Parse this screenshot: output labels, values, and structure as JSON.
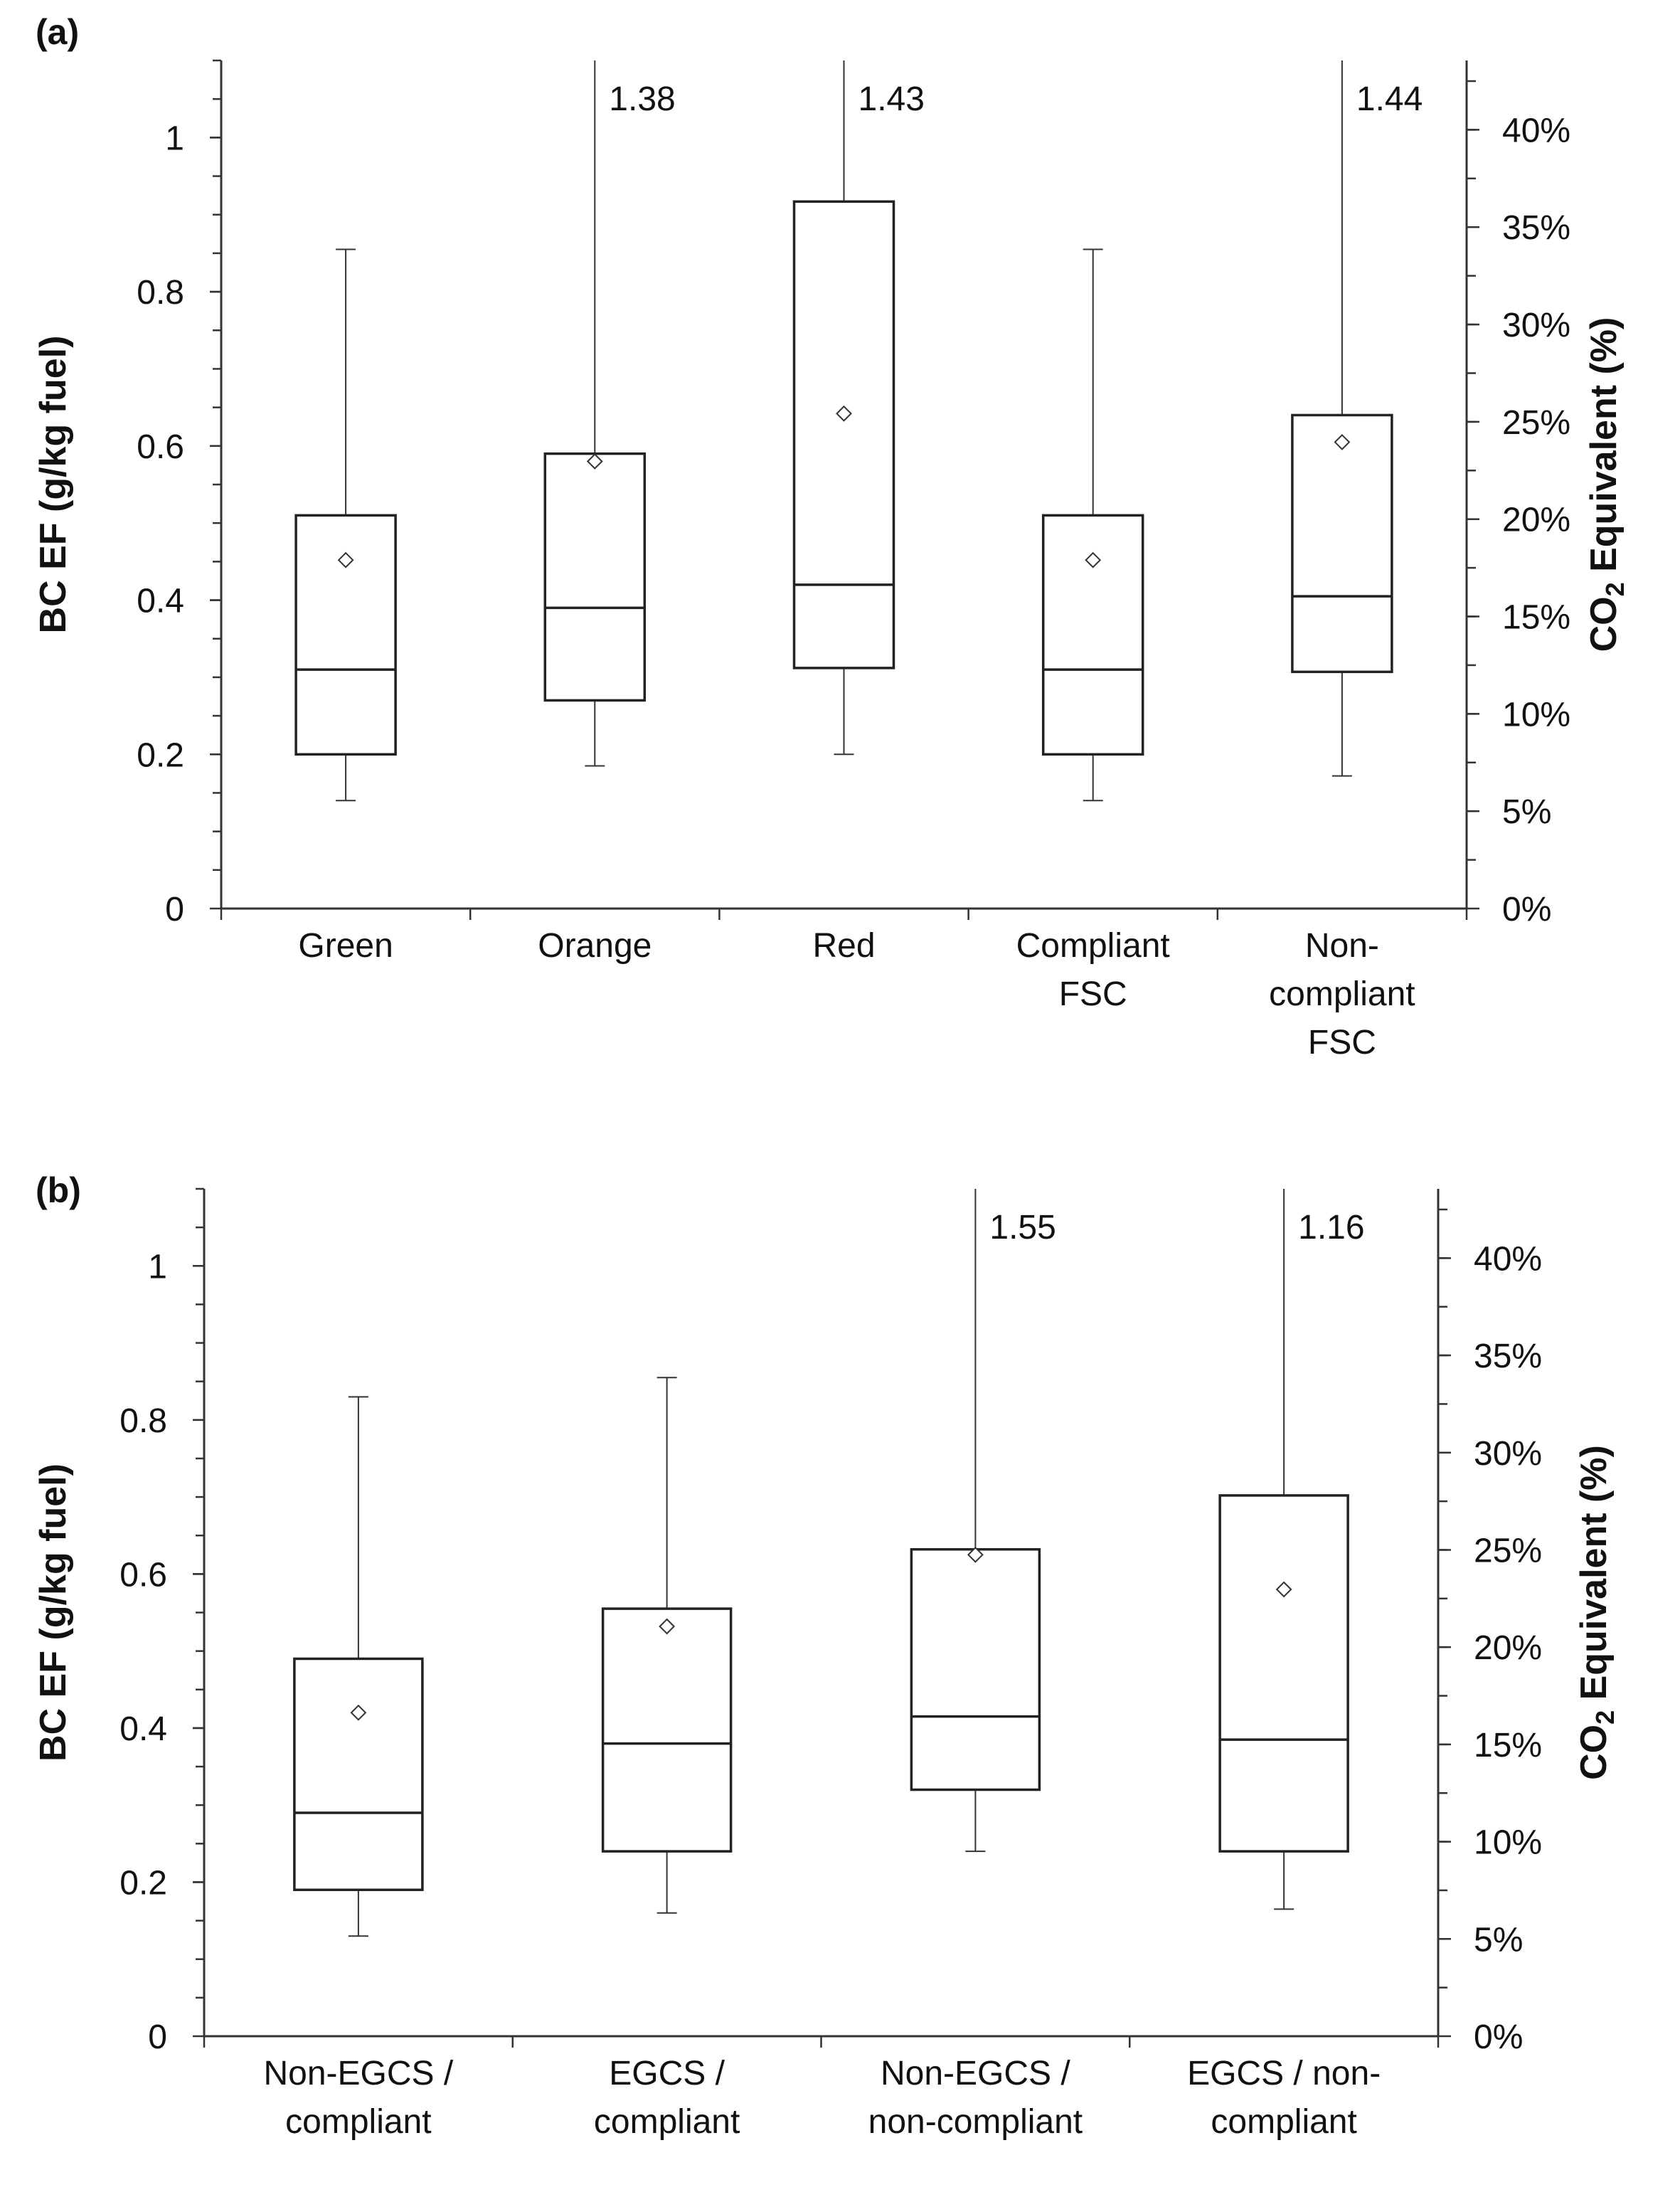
{
  "colors": {
    "ink": "#111111",
    "background": "#ffffff"
  },
  "chart_data": [
    {
      "type": "box",
      "panel_label": "(a)",
      "ylabel": "BC  EF (g/kg fuel)",
      "y2label_main": "CO",
      "y2label_sub": "2",
      "y2label_rest": " Equivalent (%)",
      "ylim": [
        0,
        1.1
      ],
      "y_ticks": [
        "0",
        "0.2",
        "0.4",
        "0.6",
        "0.8",
        "1"
      ],
      "y_tick_values": [
        0,
        0.2,
        0.4,
        0.6,
        0.8,
        1.0
      ],
      "y2_ticks": [
        "0%",
        "5%",
        "10%",
        "15%",
        "20%",
        "25%",
        "30%",
        "35%",
        "40%"
      ],
      "y2_tick_values": [
        0,
        5,
        10,
        15,
        20,
        25,
        30,
        35,
        40
      ],
      "y2_per_unit": 39.6,
      "categories": [
        {
          "lines": [
            "Green"
          ]
        },
        {
          "lines": [
            "Orange"
          ]
        },
        {
          "lines": [
            "Red"
          ]
        },
        {
          "lines": [
            "Compliant",
            "FSC"
          ]
        },
        {
          "lines": [
            "Non-",
            "compliant",
            "FSC"
          ]
        }
      ],
      "boxes": [
        {
          "min": 0.14,
          "q1": 0.2,
          "median": 0.31,
          "q3": 0.51,
          "max": 0.855,
          "mean": 0.452,
          "max_label": null
        },
        {
          "min": 0.185,
          "q1": 0.27,
          "median": 0.39,
          "q3": 0.59,
          "max": 1.38,
          "mean": 0.58,
          "max_label": "1.38"
        },
        {
          "min": 0.2,
          "q1": 0.312,
          "median": 0.42,
          "q3": 0.917,
          "max": 1.43,
          "mean": 0.642,
          "max_label": "1.43"
        },
        {
          "min": 0.14,
          "q1": 0.2,
          "median": 0.31,
          "q3": 0.51,
          "max": 0.855,
          "mean": 0.452,
          "max_label": null
        },
        {
          "min": 0.172,
          "q1": 0.307,
          "median": 0.405,
          "q3": 0.64,
          "max": 1.44,
          "mean": 0.605,
          "max_label": "1.44"
        }
      ]
    },
    {
      "type": "box",
      "panel_label": "(b)",
      "ylabel": "BC EF (g/kg fuel)",
      "y2label_main": "CO",
      "y2label_sub": "2",
      "y2label_rest": " Equivalent (%)",
      "ylim": [
        0,
        1.1
      ],
      "y_ticks": [
        "0",
        "0.2",
        "0.4",
        "0.6",
        "0.8",
        "1"
      ],
      "y_tick_values": [
        0,
        0.2,
        0.4,
        0.6,
        0.8,
        1.0
      ],
      "y2_ticks": [
        "0%",
        "5%",
        "10%",
        "15%",
        "20%",
        "25%",
        "30%",
        "35%",
        "40%"
      ],
      "y2_tick_values": [
        0,
        5,
        10,
        15,
        20,
        25,
        30,
        35,
        40
      ],
      "y2_per_unit": 39.6,
      "categories": [
        {
          "lines": [
            "Non-EGCS /",
            "compliant"
          ]
        },
        {
          "lines": [
            "EGCS /",
            "compliant"
          ]
        },
        {
          "lines": [
            "Non-EGCS /",
            "non-compliant"
          ]
        },
        {
          "lines": [
            "EGCS / non-",
            "compliant"
          ]
        }
      ],
      "boxes": [
        {
          "min": 0.13,
          "q1": 0.19,
          "median": 0.29,
          "q3": 0.49,
          "max": 0.83,
          "mean": 0.42,
          "max_label": null
        },
        {
          "min": 0.16,
          "q1": 0.24,
          "median": 0.38,
          "q3": 0.555,
          "max": 0.855,
          "mean": 0.532,
          "max_label": null
        },
        {
          "min": 0.24,
          "q1": 0.32,
          "median": 0.415,
          "q3": 0.632,
          "max": 1.55,
          "mean": 0.625,
          "max_label": "1.55"
        },
        {
          "min": 0.165,
          "q1": 0.24,
          "median": 0.385,
          "q3": 0.702,
          "max": 1.16,
          "mean": 0.58,
          "max_label": "1.16"
        }
      ]
    }
  ]
}
